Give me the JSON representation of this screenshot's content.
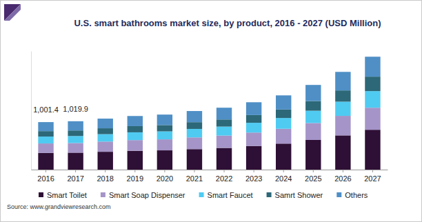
{
  "chart_data": {
    "type": "bar",
    "stacked": true,
    "title": "U.S. smart bathrooms market size, by product, 2016 - 2027 (USD Million)",
    "source": "Source: www.grandviewresearch.com",
    "categories": [
      "2016",
      "2017",
      "2018",
      "2019",
      "2020",
      "2021",
      "2022",
      "2023",
      "2024",
      "2025",
      "2026",
      "2027"
    ],
    "series": [
      {
        "name": "Smart Toilet",
        "color": "#2e0f35",
        "values": [
          351.4,
          357,
          376,
          396,
          406,
          432,
          457,
          497,
          548,
          625,
          721,
          840
        ]
      },
      {
        "name": "Smart Soap Dispenser",
        "color": "#a594c8",
        "values": [
          200,
          203,
          215,
          226,
          232,
          247,
          261,
          284,
          313,
          357,
          412,
          465
        ]
      },
      {
        "name": "Smart Faucet",
        "color": "#4fcbf2",
        "values": [
          145,
          148,
          156,
          164,
          168,
          179,
          189,
          206,
          227,
          259,
          299,
          350
        ]
      },
      {
        "name": "Samrt Shower",
        "color": "#2c6878",
        "values": [
          115,
          117,
          124,
          130,
          133,
          142,
          150,
          163,
          180,
          205,
          237,
          305
        ]
      },
      {
        "name": "Others",
        "color": "#4f8fc6",
        "values": [
          190,
          194.9,
          204,
          214,
          221,
          235,
          248,
          270,
          297,
          339,
          391,
          420
        ]
      }
    ],
    "annotations": [
      {
        "category": "2016",
        "value": 1001.4,
        "label": "1,001.4"
      },
      {
        "category": "2017",
        "value": 1019.9,
        "label": "1,019.9"
      }
    ],
    "ylim": [
      0,
      2500
    ],
    "tick_labels": "x",
    "grid": false,
    "legend": "bottom"
  }
}
